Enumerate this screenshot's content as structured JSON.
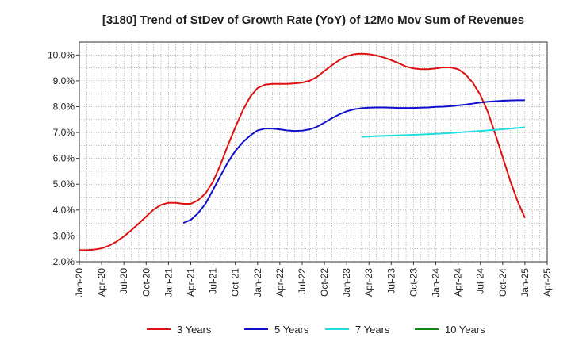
{
  "chart_data": {
    "type": "line",
    "title": "[3180]  Trend of StDev of Growth Rate (YoY) of 12Mo Mov Sum of Revenues",
    "xlabel": "",
    "ylabel": "",
    "x_ticks": [
      "Jan-20",
      "Apr-20",
      "Jul-20",
      "Oct-20",
      "Jan-21",
      "Apr-21",
      "Jul-21",
      "Oct-21",
      "Jan-22",
      "Apr-22",
      "Jul-22",
      "Oct-22",
      "Jan-23",
      "Apr-23",
      "Jul-23",
      "Oct-23",
      "Jan-24",
      "Apr-24",
      "Jul-24",
      "Oct-24",
      "Jan-25",
      "Apr-25"
    ],
    "y_ticks": [
      "2.0%",
      "3.0%",
      "4.0%",
      "5.0%",
      "6.0%",
      "7.0%",
      "8.0%",
      "9.0%",
      "10.0%"
    ],
    "ylim": [
      2.0,
      10.5
    ],
    "xlim_months": [
      0,
      63
    ],
    "grid": true,
    "legend_position": "bottom",
    "series": [
      {
        "name": "3 Years",
        "color": "#dd1111",
        "x_months": [
          0,
          1,
          2,
          3,
          4,
          5,
          6,
          7,
          8,
          9,
          10,
          11,
          12,
          13,
          14,
          15,
          16,
          17,
          18,
          19,
          20,
          21,
          22,
          23,
          24,
          25,
          26,
          27,
          28,
          29,
          30,
          31,
          32,
          33,
          34,
          35,
          36,
          37,
          38,
          39,
          40,
          41,
          42,
          43,
          44,
          45,
          46,
          47,
          48,
          49,
          50,
          51,
          52,
          53,
          54,
          55,
          56,
          57,
          58,
          59,
          60
        ],
        "values": [
          2.45,
          2.45,
          2.47,
          2.52,
          2.62,
          2.78,
          2.98,
          3.22,
          3.48,
          3.75,
          4.02,
          4.2,
          4.28,
          4.28,
          4.24,
          4.24,
          4.38,
          4.65,
          5.1,
          5.75,
          6.5,
          7.2,
          7.85,
          8.38,
          8.72,
          8.85,
          8.88,
          8.88,
          8.88,
          8.9,
          8.93,
          9.0,
          9.15,
          9.38,
          9.6,
          9.8,
          9.95,
          10.03,
          10.05,
          10.03,
          9.98,
          9.9,
          9.8,
          9.68,
          9.55,
          9.48,
          9.45,
          9.45,
          9.48,
          9.52,
          9.52,
          9.45,
          9.25,
          8.92,
          8.45,
          7.8,
          6.95,
          6.05,
          5.15,
          4.35,
          3.7
        ]
      },
      {
        "name": "5 Years",
        "color": "#1111cc",
        "x_months": [
          14,
          15,
          16,
          17,
          18,
          19,
          20,
          21,
          22,
          23,
          24,
          25,
          26,
          27,
          28,
          29,
          30,
          31,
          32,
          33,
          34,
          35,
          36,
          37,
          38,
          39,
          40,
          41,
          42,
          43,
          44,
          45,
          46,
          47,
          48,
          49,
          50,
          51,
          52,
          53,
          54,
          55,
          56,
          57,
          58,
          59,
          60
        ],
        "values": [
          3.5,
          3.62,
          3.88,
          4.25,
          4.78,
          5.32,
          5.85,
          6.28,
          6.62,
          6.88,
          7.08,
          7.15,
          7.15,
          7.12,
          7.08,
          7.06,
          7.07,
          7.12,
          7.22,
          7.38,
          7.55,
          7.7,
          7.82,
          7.9,
          7.94,
          7.96,
          7.97,
          7.97,
          7.96,
          7.95,
          7.95,
          7.95,
          7.96,
          7.97,
          7.99,
          8.0,
          8.02,
          8.05,
          8.08,
          8.12,
          8.16,
          8.19,
          8.21,
          8.23,
          8.24,
          8.25,
          8.25
        ]
      },
      {
        "name": "7 Years",
        "color": "#22dddd",
        "x_months": [
          38,
          40,
          42,
          44,
          46,
          48,
          50,
          52,
          54,
          56,
          58,
          60
        ],
        "values": [
          6.83,
          6.86,
          6.88,
          6.9,
          6.92,
          6.95,
          6.98,
          7.02,
          7.06,
          7.1,
          7.15,
          7.2
        ]
      },
      {
        "name": "10 Years",
        "color": "#118811",
        "x_months": [],
        "values": []
      }
    ]
  }
}
